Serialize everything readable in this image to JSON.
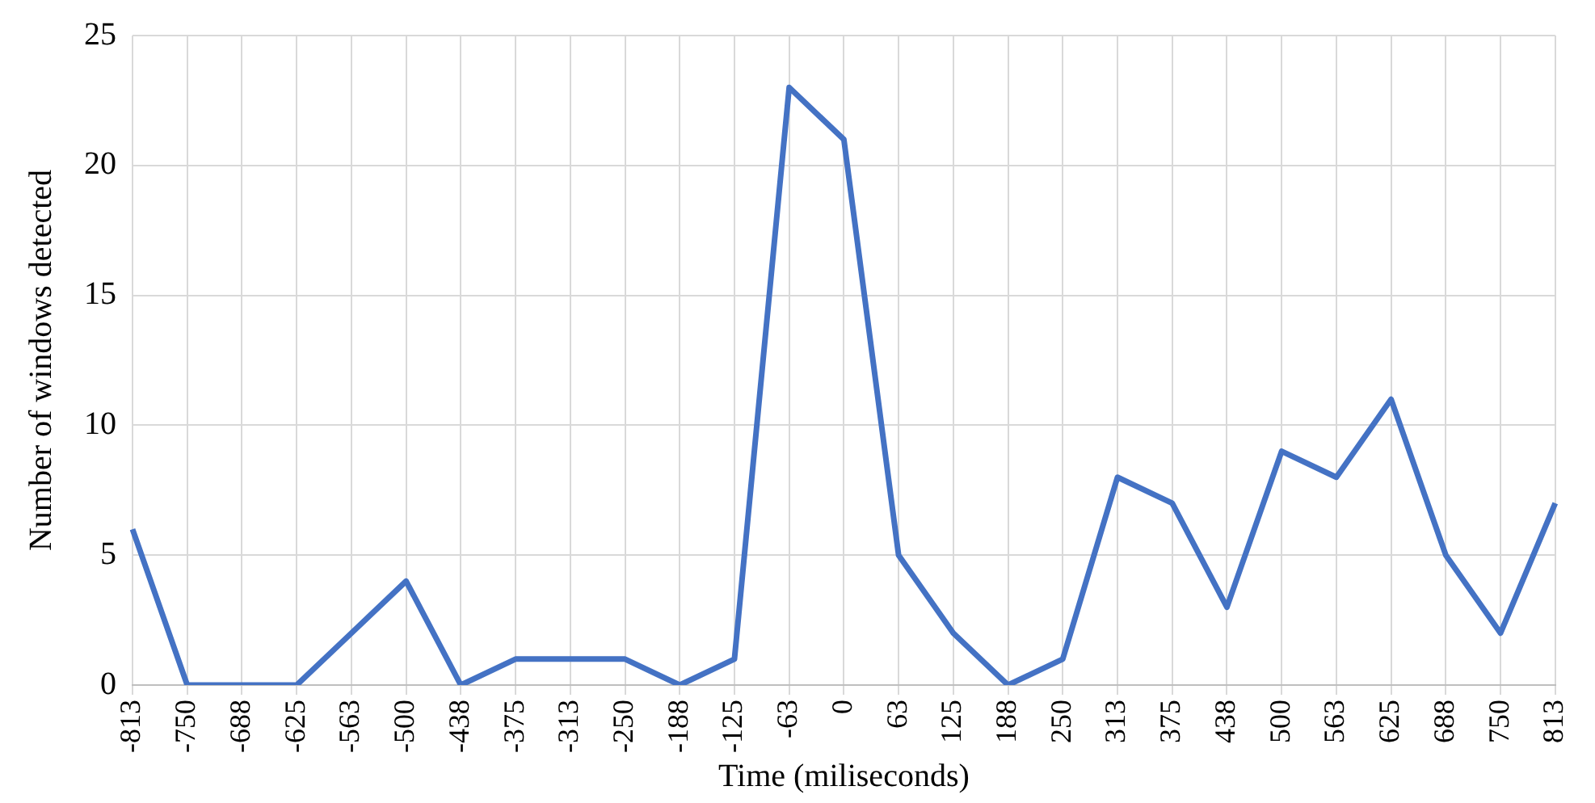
{
  "chart_data": {
    "type": "line",
    "xlabel": "Time (miliseconds)",
    "ylabel": "Number of windows detected",
    "categories": [
      "-813",
      "-750",
      "-688",
      "-625",
      "-563",
      "-500",
      "-438",
      "-375",
      "-313",
      "-250",
      "-188",
      "-125",
      "-63",
      "0",
      "63",
      "125",
      "188",
      "250",
      "313",
      "375",
      "438",
      "500",
      "563",
      "625",
      "688",
      "750",
      "813"
    ],
    "series": [
      {
        "color": "#4472c4",
        "values": [
          6,
          0,
          0,
          0,
          2,
          4,
          0,
          1,
          1,
          1,
          0,
          1,
          23,
          21,
          5,
          2,
          0,
          1,
          8,
          7,
          3,
          9,
          8,
          11,
          5,
          2,
          7
        ]
      }
    ],
    "ylim": [
      0,
      25
    ],
    "yticks": [
      0,
      5,
      10,
      15,
      20,
      25
    ],
    "grid": true,
    "marker": "none",
    "line_style": "solid",
    "legend": false
  }
}
